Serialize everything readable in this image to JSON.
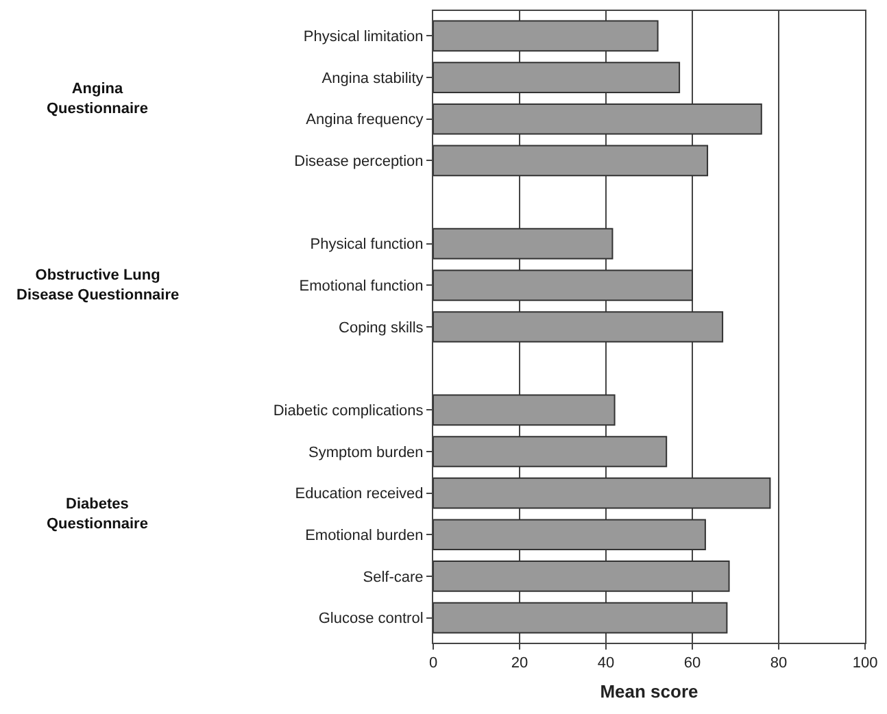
{
  "chart_data": {
    "type": "bar",
    "orientation": "horizontal",
    "xlabel": "Mean score",
    "categories": [
      "Physical limitation",
      "Angina stability",
      "Angina frequency",
      "Disease perception",
      null,
      "Physical function",
      "Emotional function",
      "Coping skills",
      null,
      "Diabetic complications",
      "Symptom burden",
      "Education received",
      "Emotional burden",
      "Self-care",
      "Glucose control"
    ],
    "values": [
      52,
      57,
      76,
      63.5,
      null,
      41.5,
      60,
      67,
      null,
      42,
      54,
      78,
      63,
      68.5,
      68
    ],
    "color": "#999999",
    "xlim": [
      0,
      100
    ],
    "xticks": [
      0,
      20,
      40,
      60,
      80,
      100
    ],
    "grid": "x",
    "annotations": [
      "Angina\nQuestionnaire",
      "Obstructive Lung\nDisease Questionnaire",
      "Diabetes\nQuestionnaire"
    ]
  }
}
